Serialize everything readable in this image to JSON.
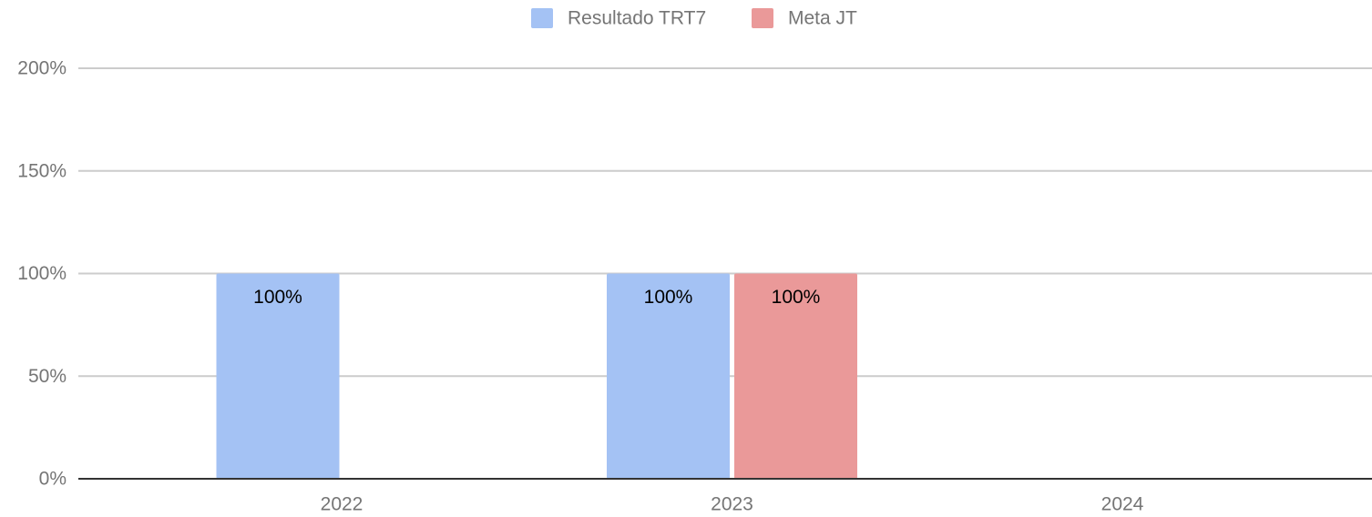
{
  "chart_data": {
    "type": "bar",
    "categories": [
      "2022",
      "2023",
      "2024"
    ],
    "series": [
      {
        "name": "Resultado TRT7",
        "color": "#a4c2f4",
        "values": [
          100,
          100,
          null
        ],
        "value_labels": [
          "100%",
          "100%",
          null
        ]
      },
      {
        "name": "Meta JT",
        "color": "#ea9999",
        "values": [
          null,
          100,
          null
        ],
        "value_labels": [
          null,
          "100%",
          null
        ]
      }
    ],
    "ylim": [
      0,
      200
    ],
    "yticks": [
      {
        "value": 0,
        "label": "0%"
      },
      {
        "value": 50,
        "label": "50%"
      },
      {
        "value": 100,
        "label": "100%"
      },
      {
        "value": 150,
        "label": "150%"
      },
      {
        "value": 200,
        "label": "200%"
      }
    ],
    "grid": true,
    "legend": "top"
  }
}
